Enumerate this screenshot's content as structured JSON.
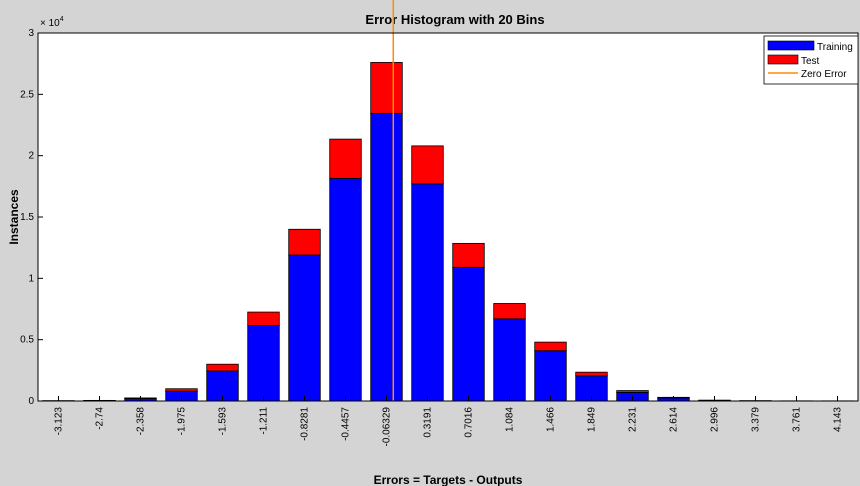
{
  "chart_data": {
    "type": "bar",
    "stacked": true,
    "title": "Error Histogram with 20 Bins",
    "xlabel": "Errors = Targets - Outputs",
    "ylabel": "Instances",
    "y_multiplier_label": "× 10",
    "y_multiplier_exponent": "4",
    "ylim": [
      0,
      30000
    ],
    "yticks": [
      0,
      5000,
      10000,
      15000,
      20000,
      25000,
      30000
    ],
    "ytick_labels": [
      "0",
      "0.5",
      "1",
      "1.5",
      "2",
      "2.5",
      "3"
    ],
    "categories": [
      "-3.123",
      "-2.74",
      "-2.358",
      "-1.975",
      "-1.593",
      "-1.211",
      "-0.8281",
      "-0.4457",
      "-0.06329",
      "0.3191",
      "0.7016",
      "1.084",
      "1.466",
      "1.849",
      "2.231",
      "2.614",
      "2.996",
      "3.379",
      "3.761",
      "4.143"
    ],
    "series": [
      {
        "name": "Training",
        "color": "#0000ff",
        "values": [
          20,
          40,
          200,
          800,
          2450,
          6150,
          11900,
          18150,
          23450,
          17700,
          10900,
          6700,
          4100,
          2050,
          700,
          250,
          50,
          20,
          10,
          10
        ]
      },
      {
        "name": "Test",
        "color": "#ff0000",
        "values": [
          5,
          10,
          50,
          200,
          550,
          1100,
          2100,
          3200,
          4150,
          3100,
          1950,
          1250,
          700,
          300,
          150,
          50,
          20,
          5,
          3,
          2
        ]
      }
    ],
    "zero_error": {
      "name": "Zero Error",
      "x_position_label": "0",
      "color": "#ff8c00"
    },
    "legend": {
      "placement": "top-right",
      "entries": [
        "Training",
        "Test",
        "Zero Error"
      ]
    },
    "grid": false
  }
}
